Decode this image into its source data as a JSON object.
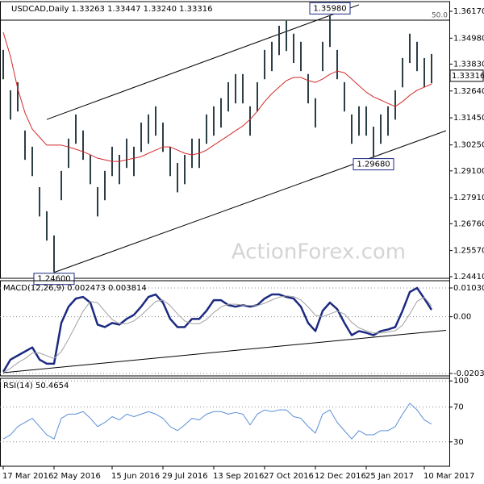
{
  "chart_data": [
    {
      "type": "ohlc",
      "header": "USDCAD,Daily  1.33263 1.33447 1.33240 1.33316",
      "watermark": "ActionForex.com",
      "categories": [
        "17 Mar 2016",
        null,
        null,
        null,
        null,
        null,
        null,
        "2 May 2016",
        null,
        null,
        null,
        null,
        null,
        null,
        null,
        "15 Jun 2016",
        null,
        null,
        null,
        null,
        null,
        null,
        "29 Jul 2016",
        null,
        null,
        null,
        null,
        null,
        null,
        "13 Sep 2016",
        null,
        null,
        null,
        null,
        null,
        null,
        "27 Oct 2016",
        null,
        null,
        null,
        null,
        null,
        null,
        "12 Dec 2016",
        null,
        null,
        null,
        null,
        null,
        null,
        "25 Jan 2017",
        null,
        null,
        null,
        null,
        null,
        null,
        null,
        "10 Mar 2017",
        null
      ],
      "high": [
        1.3446,
        1.3267,
        1.3303,
        1.3089,
        1.3017,
        1.2838,
        1.2731,
        1.2624,
        1.291,
        1.3053,
        1.316,
        1.3089,
        1.2981,
        1.2838,
        1.291,
        1.3017,
        1.2981,
        1.3053,
        1.3017,
        1.3124,
        1.316,
        1.3196,
        1.3124,
        1.3017,
        1.2945,
        1.2981,
        1.3053,
        1.3053,
        1.316,
        1.3196,
        1.3232,
        1.3303,
        1.3339,
        1.3339,
        1.3196,
        1.3303,
        1.3446,
        1.3482,
        1.3553,
        1.3575,
        1.3518,
        1.3482,
        1.3339,
        1.3232,
        1.3482,
        1.3598,
        1.3446,
        1.3303,
        1.316,
        1.3196,
        1.3196,
        1.3106,
        1.316,
        1.3196,
        1.3267,
        1.341,
        1.3518,
        1.3482,
        1.341,
        1.3428
      ],
      "low": [
        1.3316,
        1.3137,
        1.3173,
        1.2959,
        1.2887,
        1.2708,
        1.2601,
        1.246,
        1.278,
        1.2923,
        1.303,
        1.2959,
        1.2851,
        1.2708,
        1.278,
        1.2887,
        1.2851,
        1.2923,
        1.2887,
        1.2994,
        1.303,
        1.3066,
        1.2994,
        1.2887,
        1.2815,
        1.2851,
        1.2923,
        1.2923,
        1.303,
        1.3066,
        1.3102,
        1.3173,
        1.3209,
        1.3209,
        1.3066,
        1.3173,
        1.3316,
        1.3352,
        1.3423,
        1.3441,
        1.3388,
        1.3352,
        1.3209,
        1.3102,
        1.3352,
        1.3459,
        1.3316,
        1.3173,
        1.303,
        1.3066,
        1.3066,
        1.2968,
        1.303,
        1.3066,
        1.3137,
        1.328,
        1.3388,
        1.3352,
        1.328,
        1.3298
      ],
      "color": "#2c3e46",
      "series": [
        {
          "color": "#d42a2a",
          "values": [
            1.3524,
            1.3417,
            1.3274,
            1.3167,
            1.3095,
            1.3059,
            1.3024,
            1.3024,
            1.3024,
            1.3016,
            1.3006,
            1.2995,
            1.2981,
            1.2966,
            1.2959,
            1.2952,
            1.2952,
            1.2959,
            1.2966,
            1.2973,
            1.2988,
            1.3002,
            1.3016,
            1.3016,
            1.3002,
            1.2988,
            1.2981,
            1.2988,
            1.3002,
            1.3024,
            1.3045,
            1.3066,
            1.3088,
            1.3109,
            1.3138,
            1.3174,
            1.3217,
            1.3252,
            1.3281,
            1.331,
            1.3324,
            1.3324,
            1.331,
            1.3302,
            1.3317,
            1.3338,
            1.3352,
            1.3345,
            1.3317,
            1.3288,
            1.3259,
            1.3238,
            1.3224,
            1.3209,
            1.3195,
            1.3217,
            1.3245,
            1.3267,
            1.3281,
            1.3295
          ]
        }
      ],
      "ylim": [
        1.2434,
        1.366
      ],
      "yticks": [
        {
          "value": 1.3617,
          "label": "1.36170"
        },
        {
          "value": 1.3498,
          "label": "1.34980"
        },
        {
          "value": 1.3383,
          "label": "1.33830"
        },
        {
          "value": 1.3264,
          "label": "1.32640"
        },
        {
          "value": 1.3145,
          "label": "1.31450"
        },
        {
          "value": 1.3025,
          "label": "1.30250"
        },
        {
          "value": 1.291,
          "label": "1.29100"
        },
        {
          "value": 1.2791,
          "label": "1.27910"
        },
        {
          "value": 1.2676,
          "label": "1.26760"
        },
        {
          "value": 1.2557,
          "label": "1.25570"
        },
        {
          "value": 1.2441,
          "label": "1.24410"
        }
      ],
      "last_price": 1.33316,
      "annotations": [
        {
          "value": 1.3598,
          "label": "1.35980"
        },
        {
          "value": 1.2968,
          "label": "1.29680"
        },
        {
          "value": 1.246,
          "label": "1.24600"
        }
      ],
      "levels": [
        {
          "value": 1.3578,
          "label": "50.0"
        }
      ],
      "trendlines": [
        {
          "from": [
            6,
            1.3138
          ],
          "to": [
            49,
            1.3646
          ]
        },
        {
          "from": [
            7,
            1.246
          ],
          "to": [
            61,
            1.3088
          ]
        }
      ]
    },
    {
      "type": "line",
      "label": "MACD(12,26,9) 0.002473 0.003814",
      "series": [
        {
          "color": "#1c2a80",
          "values": [
            -0.01974,
            -0.01536,
            -0.0139,
            -0.01245,
            -0.01099,
            -0.01536,
            -0.01682,
            -0.01682,
            -0.00224,
            0.0036,
            0.00651,
            0.0071,
            0.00506,
            -0.00282,
            -0.0037,
            -0.00224,
            -0.00282,
            -0.00078,
            0.00068,
            0.0036,
            0.0071,
            0.00797,
            0.00506,
            -0.00078,
            -0.0037,
            -0.0037,
            -0.00078,
            -0.00078,
            0.00214,
            0.00593,
            0.00593,
            0.00418,
            0.0036,
            0.00418,
            0.0036,
            0.00418,
            0.00651,
            0.00797,
            0.00797,
            0.0071,
            0.00651,
            0.0036,
            -0.00224,
            -0.00515,
            0.00214,
            0.00506,
            0.00272,
            -0.00224,
            -0.00661,
            -0.00515,
            -0.00574,
            -0.00661,
            -0.00515,
            -0.00457,
            -0.0037,
            0.00214,
            0.00885,
            0.01031,
            0.00651,
            0.00247
          ]
        },
        {
          "color": "#a0a0a0",
          "values": [
            -0.02,
            -0.0185,
            -0.0165,
            -0.015,
            -0.013,
            -0.013,
            -0.014,
            -0.015,
            -0.0125,
            -0.008,
            -0.003,
            0.002,
            0.0055,
            0.005,
            0.002,
            -0.001,
            -0.0025,
            -0.0025,
            -0.0015,
            0.0005,
            0.003,
            0.0055,
            0.006,
            0.004,
            0.001,
            -0.0015,
            -0.0025,
            -0.0025,
            -0.001,
            0.0015,
            0.0035,
            0.0045,
            0.0045,
            0.0042,
            0.004,
            0.004,
            0.0048,
            0.006,
            0.007,
            0.0075,
            0.0072,
            0.006,
            0.0035,
            0.0005,
            0,
            0.001,
            0.002,
            0.001,
            -0.002,
            -0.004,
            -0.005,
            -0.0058,
            -0.0058,
            -0.0055,
            -0.005,
            -0.003,
            0.001,
            0.0055,
            0.007,
            0.00381
          ]
        }
      ],
      "ylim": [
        -0.0212,
        0.0129
      ],
      "yticks": [
        0.010306,
        {
          "value": 0,
          "label": "0.00"
        },
        -0.020324
      ],
      "grid": true,
      "trendlines": [
        {
          "from": [
            0,
            -0.02003
          ],
          "to": [
            61,
            -0.00486
          ]
        }
      ]
    },
    {
      "type": "line",
      "label": "RSI(14) 50.4654",
      "series": [
        {
          "color": "#5b8fd6",
          "values": [
            33.3,
            38.1,
            47.6,
            52.4,
            57.1,
            47.6,
            38.1,
            33.3,
            57.1,
            61.9,
            61.9,
            64.8,
            57.1,
            47.6,
            52.4,
            59.0,
            55.2,
            61.9,
            59.0,
            61.9,
            64.8,
            61.9,
            57.1,
            47.6,
            42.9,
            49.5,
            57.1,
            55.2,
            61.9,
            64.8,
            64.8,
            61.9,
            63.8,
            61.9,
            49.5,
            61.9,
            66.7,
            64.8,
            66.7,
            66.7,
            59.0,
            57.1,
            47.6,
            40.0,
            61.9,
            66.7,
            52.4,
            42.9,
            33.3,
            42.9,
            38.1,
            38.1,
            42.9,
            42.9,
            47.6,
            61.9,
            74.3,
            66.7,
            55.2,
            50.47
          ]
        }
      ],
      "ylim": [
        2,
        103
      ],
      "yticks": [
        100,
        70,
        30
      ],
      "grid": true
    }
  ]
}
